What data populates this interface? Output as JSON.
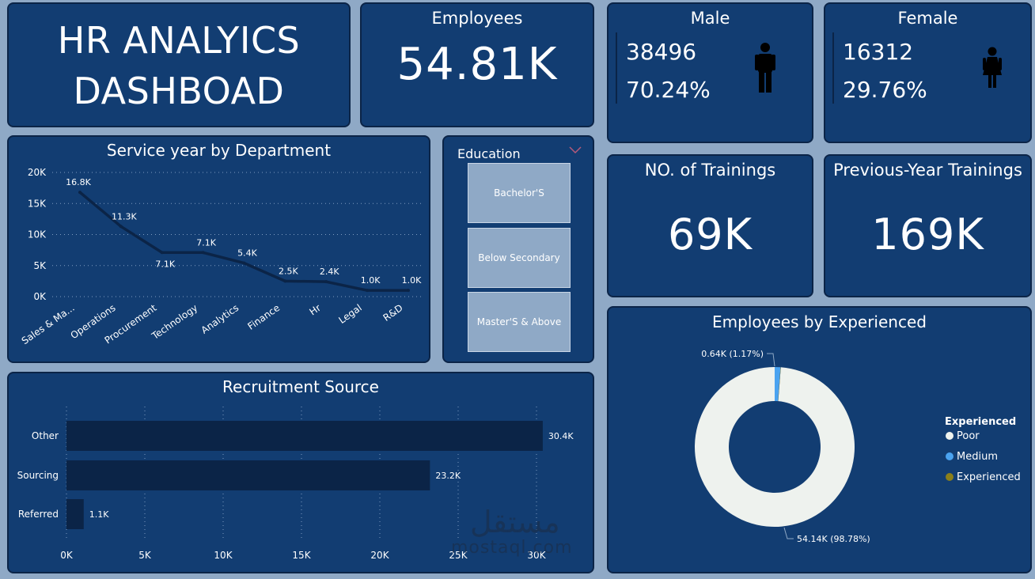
{
  "title": {
    "line1": "HR ANALYICS",
    "line2": "DASHBOAD"
  },
  "employees": {
    "label": "Employees",
    "value": "54.81K"
  },
  "male": {
    "label": "Male",
    "count": "38496",
    "pct": "70.24%"
  },
  "female": {
    "label": "Female",
    "count": "16312",
    "pct": "29.76%"
  },
  "trainings": {
    "label": "NO. of Trainings",
    "value": "69K"
  },
  "prev_trainings": {
    "label": "Previous-Year Trainings",
    "value": "169K"
  },
  "education": {
    "label": "Education",
    "items": [
      "Bachelor'S",
      "Below Secondary",
      "Master'S & Above"
    ]
  },
  "watermark": {
    "arabic": "مستقل",
    "latin": "mostaql.com"
  },
  "colors": {
    "background": "#8fa9c6",
    "card": "#123d72",
    "dark": "#0b2447",
    "medium": "#4aa3f0",
    "poor": "#eef2ee",
    "experienced": "#8a7f1a"
  },
  "chart_data": [
    {
      "type": "line",
      "title": "Service year by Department",
      "categories": [
        "Sales & Ma...",
        "Operations",
        "Procurement",
        "Technology",
        "Analytics",
        "Finance",
        "Hr",
        "Legal",
        "R&D"
      ],
      "values": [
        16800,
        11300,
        7100,
        7100,
        5400,
        2500,
        2400,
        1000,
        1000
      ],
      "data_labels": [
        "16.8K",
        "11.3K",
        "7.1K",
        "7.1K",
        "5.4K",
        "2.5K",
        "2.4K",
        "1.0K",
        "1.0K"
      ],
      "yticks": [
        "0K",
        "5K",
        "10K",
        "15K",
        "20K"
      ],
      "ylim": [
        0,
        20000
      ],
      "grid": true
    },
    {
      "type": "bar",
      "orientation": "horizontal",
      "title": "Recruitment Source",
      "categories": [
        "Other",
        "Sourcing",
        "Referred"
      ],
      "values": [
        30400,
        23200,
        1100
      ],
      "data_labels": [
        "30.4K",
        "23.2K",
        "1.1K"
      ],
      "xticks": [
        "0K",
        "5K",
        "10K",
        "15K",
        "20K",
        "25K",
        "30K"
      ],
      "xlim": [
        0,
        30000
      ],
      "grid": true
    },
    {
      "type": "pie",
      "donut": true,
      "title": "Employees by Experienced",
      "legend_title": "Experienced",
      "legend_position": "right",
      "slices": [
        {
          "name": "Poor",
          "value": 54140,
          "label": "54.14K (98.78%)",
          "color": "#eef2ee"
        },
        {
          "name": "Medium",
          "value": 640,
          "label": "0.64K (1.17%)",
          "color": "#4aa3f0"
        },
        {
          "name": "Experienced",
          "value": 30,
          "label": "",
          "color": "#8a7f1a"
        }
      ]
    }
  ]
}
